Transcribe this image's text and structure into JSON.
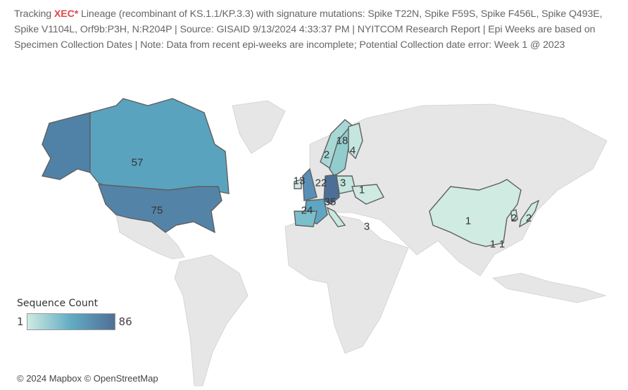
{
  "caption": {
    "prefix": "Tracking ",
    "lineage": "XEC*",
    "rest": " Lineage (recombinant of KS.1.1/KP.3.3) with signature mutations: Spike T22N, Spike F59S, Spike F456L, Spike Q493E, Spike V1104L, Orf9b:P3H, N:R204P  | Source: GISAID  9/13/2024 4:33:37 PM | NYITCOM Research Report | Epi Weeks are based on Specimen Collection Dates | Note: Data from recent epi-weeks are incomplete; Potential Collection date error: Week 1 @ 2023"
  },
  "map_labels": {
    "canada": "57",
    "usa": "75",
    "sweden": "18",
    "norway": "2",
    "finland": "4",
    "uk": "13",
    "netherlands": "22",
    "poland": "3",
    "ukraine": "1",
    "switzerland": "35",
    "spain": "24",
    "israel": "3",
    "china": "1",
    "korea": "2",
    "japan": "2",
    "hongkong": "1",
    "taiwan": "1"
  },
  "legend": {
    "title": "Sequence Count",
    "min": "1",
    "max": "86",
    "colors": {
      "low": "#cfeae3",
      "mid": "#62abc4",
      "high": "#4f6f95"
    }
  },
  "attribution": "© 2024 Mapbox  © OpenStreetMap"
}
